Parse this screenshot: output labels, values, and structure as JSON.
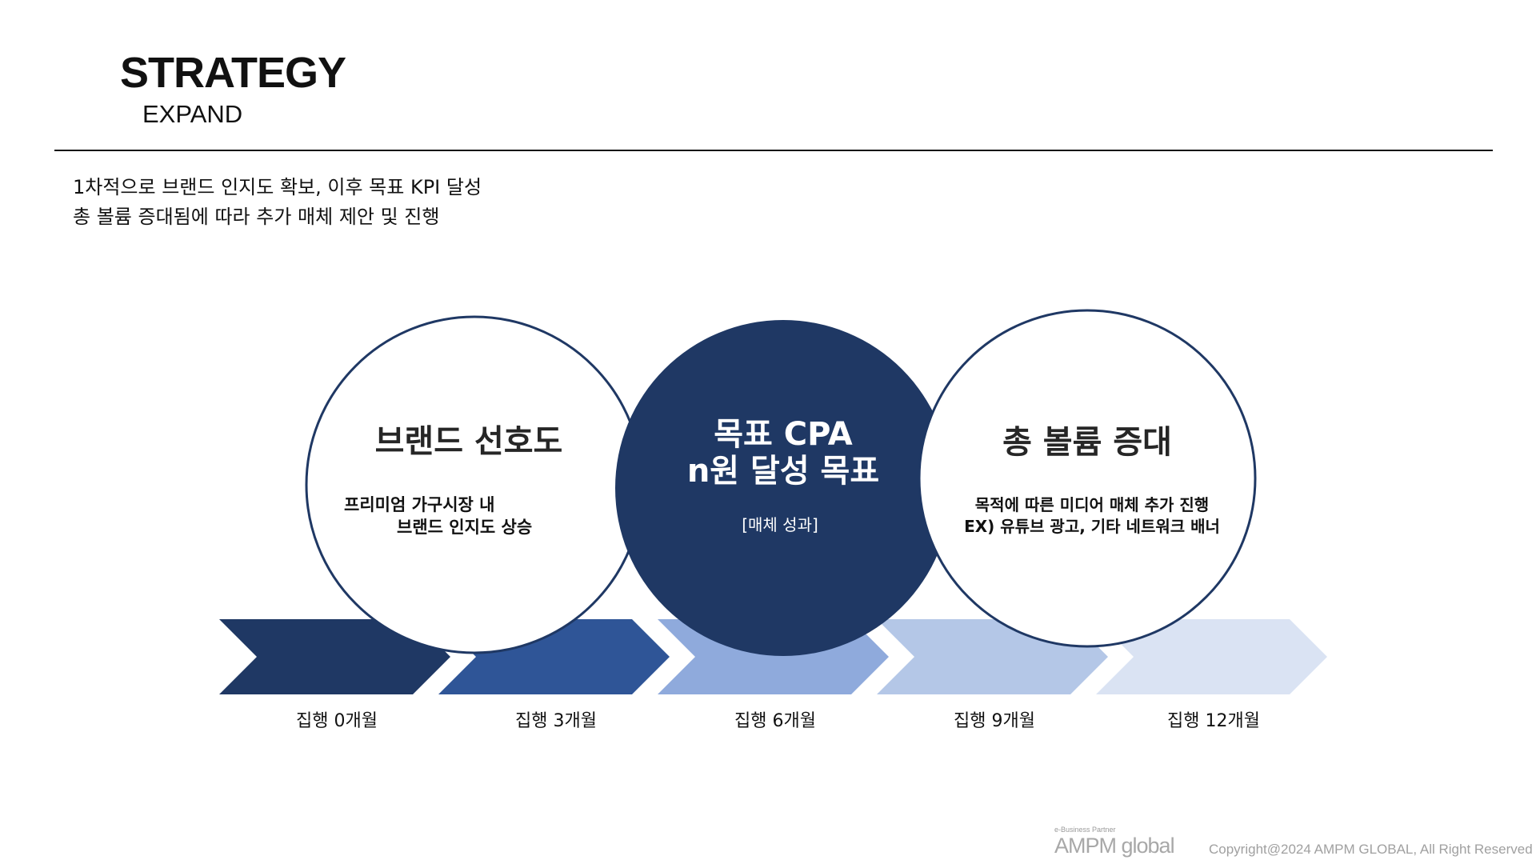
{
  "header": {
    "title": "STRATEGY",
    "subtitle": "EXPAND"
  },
  "intro": {
    "line1": "1차적으로 브랜드 인지도 확보, 이후 목표 KPI 달성",
    "line2": "총 볼륨 증대됨에 따라 추가 매체 제안 및 진행"
  },
  "circles": {
    "left": {
      "title": "브랜드 선호도",
      "line1": "프리미엄 가구시장 내",
      "line2": "브랜드 인지도 상승"
    },
    "center": {
      "title_line1": "목표 CPA",
      "title_line2": "n원 달성 목표",
      "note": "[매체 성과]"
    },
    "right": {
      "title": "총 볼륨 증대",
      "line1": "목적에 따른 미디어 매체 추가 진행",
      "line2": "EX) 유튜브 광고, 기타 네트워크 배너"
    }
  },
  "timeline": [
    {
      "label": "집행 0개월",
      "color": "#1f3864"
    },
    {
      "label": "집행 3개월",
      "color": "#2f5597"
    },
    {
      "label": "집행 6개월",
      "color": "#8faadc"
    },
    {
      "label": "집행 9개월",
      "color": "#b4c7e7"
    },
    {
      "label": "집행 12개월",
      "color": "#dae3f3"
    }
  ],
  "colors": {
    "navy": "#1f3864",
    "circle_stroke": "#1f3864"
  },
  "footer": {
    "logo_tagline": "e-Business Partner",
    "logo_text": "AMPM global",
    "copyright": "Copyright@2024 AMPM GLOBAL, All Right Reserved"
  }
}
